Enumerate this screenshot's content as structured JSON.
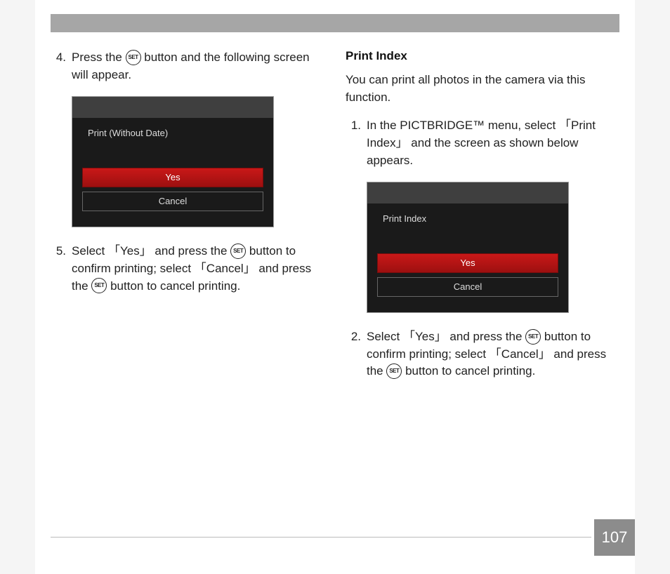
{
  "colors": {
    "header_bar": "#a6a6a6",
    "screen_bg": "#1a1a1a",
    "screen_top": "#3f3f3f",
    "yes_gradient_top": "#c91818",
    "yes_gradient_bottom": "#9d1010",
    "cancel_border": "#666666",
    "page_num_bg": "#8c8c8c",
    "text": "#222222"
  },
  "left": {
    "step4": {
      "num": "4.",
      "pre": "Press the ",
      "set": "SET",
      "post": " button and the following screen will appear."
    },
    "screen1": {
      "title": "Print (Without Date)",
      "yes": "Yes",
      "cancel": "Cancel"
    },
    "step5": {
      "num": "5.",
      "t1": "Select 「Yes」 and press the ",
      "set": "SET",
      "t2": " button to confirm printing; select 「Cancel」 and",
      "t3": " press the ",
      "t4": " button to cancel printing."
    }
  },
  "right": {
    "title": "Print Index",
    "intro": "You can print all photos in the camera via this function.",
    "step1": {
      "num": "1.",
      "text": "In the PICTBRIDGE™ menu, select 「Print Index」 and the screen as shown below appears."
    },
    "screen2": {
      "title": "Print Index",
      "yes": "Yes",
      "cancel": "Cancel"
    },
    "step2": {
      "num": "2.",
      "t1": "Select 「Yes」 and press the ",
      "set": "SET",
      "t2": " button to confirm printing; select 「Cancel」 and",
      "t3": " press the ",
      "t4": " button to cancel printing."
    }
  },
  "page_number": "107"
}
